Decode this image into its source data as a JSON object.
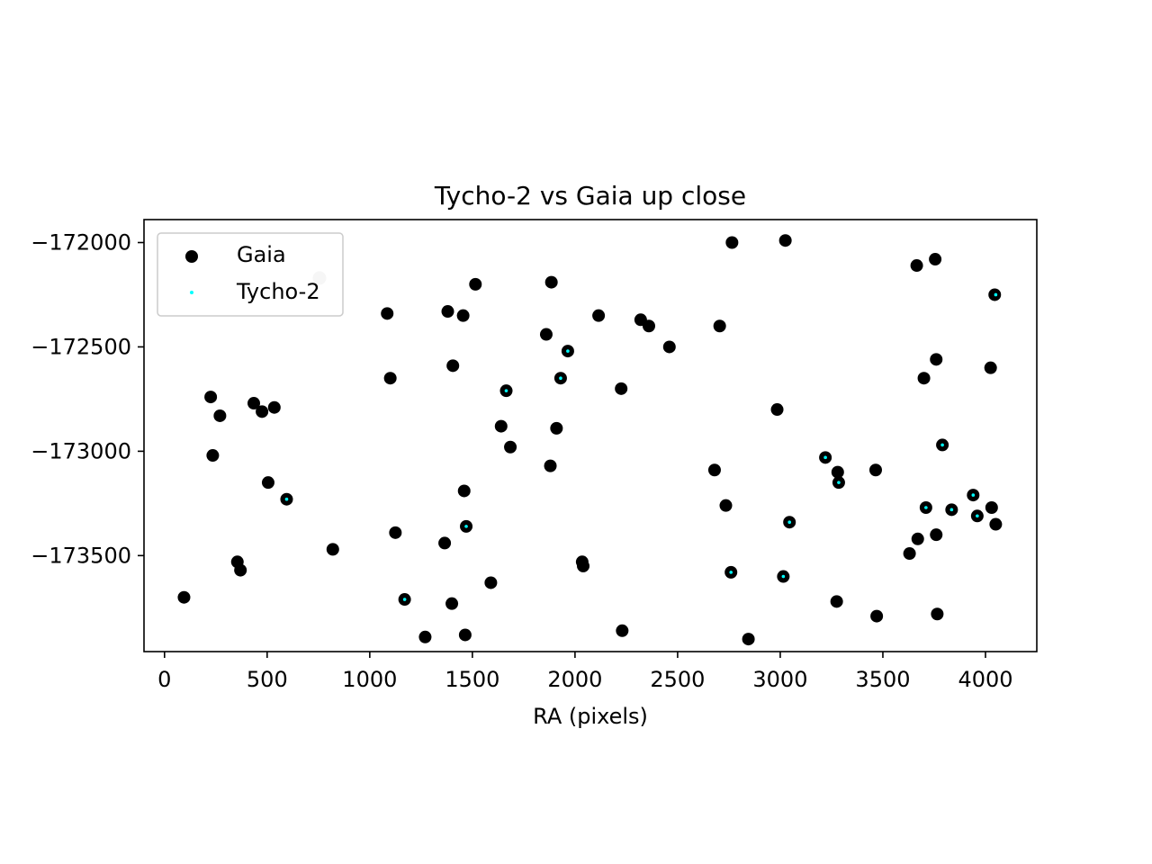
{
  "chart_data": {
    "type": "scatter",
    "title": "Tycho-2 vs Gaia up close",
    "xlabel": "RA (pixels)",
    "ylabel": "",
    "xlim": [
      -100,
      4250
    ],
    "ylim": [
      -173960,
      -171890
    ],
    "xticks": [
      0,
      500,
      1000,
      1500,
      2000,
      2500,
      3000,
      3500,
      4000
    ],
    "yticks": [
      -172000,
      -172500,
      -173000,
      -173500
    ],
    "xtick_labels": [
      "0",
      "500",
      "1000",
      "1500",
      "2000",
      "2500",
      "3000",
      "3500",
      "4000"
    ],
    "ytick_labels": [
      "−172000",
      "−172500",
      "−173000",
      "−173500"
    ],
    "legend_position": "upper left",
    "grid": false,
    "series": [
      {
        "name": "Gaia",
        "color": "#000000",
        "marker": "filled-circle",
        "points": [
          [
            95,
            -173700
          ],
          [
            225,
            -172740
          ],
          [
            235,
            -173020
          ],
          [
            270,
            -172830
          ],
          [
            355,
            -173530
          ],
          [
            370,
            -173570
          ],
          [
            435,
            -172770
          ],
          [
            475,
            -172810
          ],
          [
            505,
            -173150
          ],
          [
            535,
            -172790
          ],
          [
            595,
            -173230
          ],
          [
            820,
            -173470
          ],
          [
            1085,
            -172340
          ],
          [
            1100,
            -172650
          ],
          [
            1125,
            -173390
          ],
          [
            1170,
            -173710
          ],
          [
            1270,
            -173890
          ],
          [
            1365,
            -173440
          ],
          [
            1380,
            -172330
          ],
          [
            1400,
            -173730
          ],
          [
            1405,
            -172590
          ],
          [
            1455,
            -172350
          ],
          [
            1460,
            -173190
          ],
          [
            1465,
            -173880
          ],
          [
            1470,
            -173360
          ],
          [
            1515,
            -172200
          ],
          [
            1590,
            -173630
          ],
          [
            1640,
            -172880
          ],
          [
            1665,
            -172710
          ],
          [
            1685,
            -172980
          ],
          [
            1860,
            -172440
          ],
          [
            1880,
            -173070
          ],
          [
            1885,
            -172190
          ],
          [
            1910,
            -172890
          ],
          [
            1930,
            -172650
          ],
          [
            1965,
            -172520
          ],
          [
            2035,
            -173530
          ],
          [
            2040,
            -173550
          ],
          [
            2115,
            -172350
          ],
          [
            2225,
            -172700
          ],
          [
            2230,
            -173860
          ],
          [
            2320,
            -172370
          ],
          [
            2360,
            -172400
          ],
          [
            2460,
            -172500
          ],
          [
            2680,
            -173090
          ],
          [
            2705,
            -172400
          ],
          [
            2735,
            -173260
          ],
          [
            2760,
            -173580
          ],
          [
            2765,
            -172000
          ],
          [
            2845,
            -173900
          ],
          [
            2985,
            -172800
          ],
          [
            3015,
            -173600
          ],
          [
            3025,
            -171990
          ],
          [
            3045,
            -173340
          ],
          [
            3220,
            -173030
          ],
          [
            3275,
            -173720
          ],
          [
            3280,
            -173100
          ],
          [
            3285,
            -173150
          ],
          [
            3465,
            -173090
          ],
          [
            3470,
            -173790
          ],
          [
            3630,
            -173490
          ],
          [
            3665,
            -172110
          ],
          [
            3670,
            -173420
          ],
          [
            3700,
            -172650
          ],
          [
            3710,
            -173270
          ],
          [
            3755,
            -172080
          ],
          [
            3760,
            -172560
          ],
          [
            3760,
            -173400
          ],
          [
            3765,
            -173780
          ],
          [
            3790,
            -172970
          ],
          [
            3835,
            -173280
          ],
          [
            3940,
            -173210
          ],
          [
            3960,
            -173310
          ],
          [
            4025,
            -172600
          ],
          [
            4030,
            -173270
          ],
          [
            4045,
            -172250
          ],
          [
            4050,
            -173350
          ]
        ]
      },
      {
        "name": "Tycho-2",
        "color": "#00ffff",
        "marker": "small-dot",
        "points": [
          [
            595,
            -173230
          ],
          [
            1170,
            -173710
          ],
          [
            1470,
            -173360
          ],
          [
            1665,
            -172710
          ],
          [
            1930,
            -172650
          ],
          [
            1965,
            -172520
          ],
          [
            2760,
            -173580
          ],
          [
            3015,
            -173600
          ],
          [
            3045,
            -173340
          ],
          [
            3220,
            -173030
          ],
          [
            3285,
            -173150
          ],
          [
            3710,
            -173270
          ],
          [
            3790,
            -172970
          ],
          [
            3835,
            -173280
          ],
          [
            3940,
            -173210
          ],
          [
            3960,
            -173310
          ],
          [
            4050,
            -172250
          ]
        ]
      }
    ],
    "annotations": [
      {
        "type": "faint-gray-dot",
        "x": 755,
        "y": -172170
      }
    ]
  }
}
